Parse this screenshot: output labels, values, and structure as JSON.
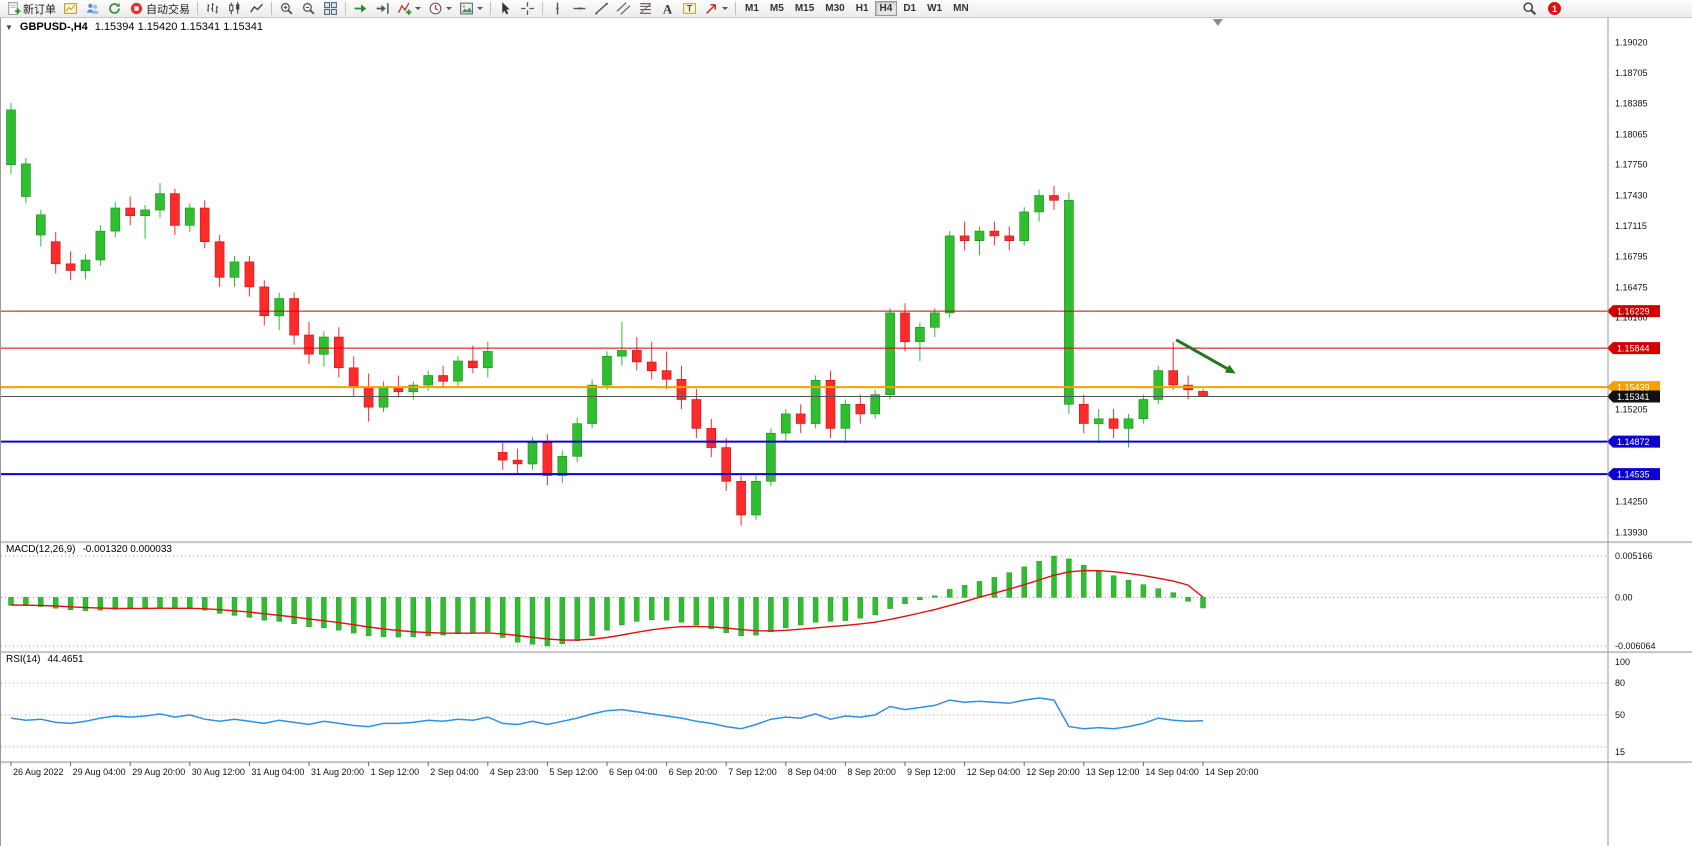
{
  "colors": {
    "candle_up": "#2fbe2f",
    "candle_down": "#ff2b2b",
    "candle_up_stroke": "#1d8c1d",
    "candle_down_stroke": "#c01414",
    "macd_histogram": "#2fbe2f",
    "macd_signal": "#e01010",
    "rsi_line": "#2f90df",
    "axis_text": "#111111",
    "grid_dotted": "#9a9a9a",
    "separator": "#9a9a9a",
    "arrow_annotation": "#1f7a1f",
    "notification_badge": "#e01010"
  },
  "toolbar": {
    "items": [
      {
        "name": "new-order-button",
        "icon": "doc-plus",
        "label": "新订单"
      },
      {
        "name": "new-chart-button",
        "icon": "chart-plus"
      },
      {
        "name": "profiles-button",
        "icon": "profiles"
      },
      {
        "name": "refresh-button",
        "icon": "refresh"
      },
      {
        "name": "auto-trading-button",
        "icon": "autotrade",
        "label": "自动交易"
      },
      {
        "sep": true
      },
      {
        "name": "bar-chart-button",
        "icon": "bars"
      },
      {
        "name": "candlestick-chart-button",
        "icon": "candles"
      },
      {
        "name": "line-chart-button",
        "icon": "linechart"
      },
      {
        "sep": true
      },
      {
        "name": "zoom-in-button",
        "icon": "zoom-in"
      },
      {
        "name": "zoom-out-button",
        "icon": "zoom-out"
      },
      {
        "name": "tile-windows-button",
        "icon": "tile"
      },
      {
        "sep": true
      },
      {
        "name": "auto-scroll-button",
        "icon": "autoscroll"
      },
      {
        "name": "chart-shift-button",
        "icon": "chartshift"
      },
      {
        "name": "indicators-button",
        "icon": "indicators",
        "caret": true
      },
      {
        "name": "periods-button",
        "icon": "clock",
        "caret": true
      },
      {
        "name": "templates-button",
        "icon": "template",
        "caret": true
      },
      {
        "sep": true
      },
      {
        "name": "cursor-button",
        "icon": "cursor"
      },
      {
        "name": "crosshair-button",
        "icon": "crosshair"
      },
      {
        "sep": true
      },
      {
        "name": "vertical-line-button",
        "icon": "vline"
      },
      {
        "name": "horizontal-line-button",
        "icon": "hline"
      },
      {
        "name": "trendline-button",
        "icon": "trendline"
      },
      {
        "name": "equidistant-channel-button",
        "icon": "channel"
      },
      {
        "name": "fibonacci-button",
        "icon": "fibo"
      },
      {
        "name": "text-button",
        "icon": "textA"
      },
      {
        "name": "text-label-button",
        "icon": "textT"
      },
      {
        "name": "arrows-button",
        "icon": "arrowmark",
        "caret": true
      },
      {
        "sep": true
      }
    ],
    "timeframes": [
      {
        "label": "M1"
      },
      {
        "label": "M5"
      },
      {
        "label": "M15"
      },
      {
        "label": "M30"
      },
      {
        "label": "H1"
      },
      {
        "label": "H4",
        "active": true
      },
      {
        "label": "D1"
      },
      {
        "label": "W1"
      },
      {
        "label": "MN"
      }
    ],
    "notification_count": "1"
  },
  "chart": {
    "symbol_title": "GBPUSD-,H4",
    "ohlc_readout": "1.15394 1.15420 1.15341 1.15341",
    "price_axis": [
      {
        "price": 1.1902,
        "label": "1.19020"
      },
      {
        "price": 1.18705,
        "label": "1.18705"
      },
      {
        "price": 1.18385,
        "label": "1.18385"
      },
      {
        "price": 1.18065,
        "label": "1.18065"
      },
      {
        "price": 1.1775,
        "label": "1.17750"
      },
      {
        "price": 1.1743,
        "label": "1.17430"
      },
      {
        "price": 1.17115,
        "label": "1.17115"
      },
      {
        "price": 1.16795,
        "label": "1.16795"
      },
      {
        "price": 1.16475,
        "label": "1.16475"
      },
      {
        "price": 1.1616,
        "label": "1.16160"
      },
      {
        "price": 1.15205,
        "label": "1.15205"
      },
      {
        "price": 1.1425,
        "label": "1.14250"
      },
      {
        "price": 1.1393,
        "label": "1.13930"
      }
    ],
    "hlines": [
      {
        "name": "resistance-line-upper",
        "price": 1.16229,
        "label": "1.16229",
        "color": "#d40000",
        "thickness": 1,
        "badge": "#d40000",
        "interactable": true
      },
      {
        "name": "resistance-line-lower",
        "price": 1.15844,
        "label": "1.15844",
        "color": "#d40000",
        "thickness": 1,
        "badge": "#d40000",
        "interactable": true
      },
      {
        "name": "pivot-line-orange",
        "price": 1.15439,
        "label": "1.15439",
        "color": "#f7a000",
        "thickness": 2,
        "badge": "#f7a000",
        "interactable": true
      },
      {
        "name": "bid-price-line",
        "price": 1.15341,
        "label": "1.15341",
        "color": "#555555",
        "thickness": 1,
        "badge": "#111111",
        "interactable": false
      },
      {
        "name": "support-line-upper",
        "price": 1.14872,
        "label": "1.14872",
        "color": "#0a00d0",
        "thickness": 2,
        "badge": "#0a00d0",
        "interactable": true
      },
      {
        "name": "support-line-lower",
        "price": 1.14535,
        "label": "1.14535",
        "color": "#0a00d0",
        "thickness": 2,
        "badge": "#0a00d0",
        "interactable": true
      }
    ],
    "shift_marker_bar": 81
  },
  "chart_data": {
    "type": "candlestick",
    "title": "GBPUSD- H4",
    "price_range": {
      "max": 1.1915,
      "min": 1.1385
    },
    "x_labels": [
      "26 Aug 2022",
      "29 Aug 04:00",
      "29 Aug 20:00",
      "30 Aug 12:00",
      "31 Aug 04:00",
      "31 Aug 20:00",
      "1 Sep 12:00",
      "2 Sep 04:00",
      "4 Sep 23:00",
      "5 Sep 12:00",
      "6 Sep 04:00",
      "6 Sep 20:00",
      "7 Sep 12:00",
      "8 Sep 04:00",
      "8 Sep 20:00",
      "9 Sep 12:00",
      "12 Sep 04:00",
      "12 Sep 20:00",
      "13 Sep 12:00",
      "14 Sep 04:00",
      "14 Sep 20:00"
    ],
    "bars_per_label": 4,
    "candles": [
      [
        1.1775,
        1.1839,
        1.1765,
        1.1832
      ],
      [
        1.1742,
        1.1782,
        1.1735,
        1.1776
      ],
      [
        1.1702,
        1.1728,
        1.169,
        1.1723
      ],
      [
        1.1695,
        1.1705,
        1.1662,
        1.1672
      ],
      [
        1.1672,
        1.1685,
        1.1655,
        1.1665
      ],
      [
        1.1665,
        1.1682,
        1.1656,
        1.1676
      ],
      [
        1.1676,
        1.1712,
        1.167,
        1.1706
      ],
      [
        1.1706,
        1.1736,
        1.17,
        1.173
      ],
      [
        1.173,
        1.1742,
        1.1712,
        1.1722
      ],
      [
        1.1722,
        1.1733,
        1.1698,
        1.1728
      ],
      [
        1.1728,
        1.1756,
        1.172,
        1.1745
      ],
      [
        1.1745,
        1.175,
        1.1702,
        1.1712
      ],
      [
        1.1712,
        1.1735,
        1.1705,
        1.173
      ],
      [
        1.173,
        1.1738,
        1.1688,
        1.1695
      ],
      [
        1.1695,
        1.1702,
        1.1648,
        1.1658
      ],
      [
        1.1658,
        1.168,
        1.1648,
        1.1674
      ],
      [
        1.1674,
        1.168,
        1.1638,
        1.1648
      ],
      [
        1.1648,
        1.1655,
        1.1608,
        1.1618
      ],
      [
        1.1618,
        1.1642,
        1.1603,
        1.1636
      ],
      [
        1.1636,
        1.1642,
        1.1588,
        1.1598
      ],
      [
        1.1598,
        1.1612,
        1.1568,
        1.1578
      ],
      [
        1.1578,
        1.1602,
        1.1565,
        1.1596
      ],
      [
        1.1596,
        1.1606,
        1.1554,
        1.1564
      ],
      [
        1.1564,
        1.1576,
        1.1534,
        1.1544
      ],
      [
        1.1544,
        1.1558,
        1.1508,
        1.1523
      ],
      [
        1.1523,
        1.155,
        1.1518,
        1.1544
      ],
      [
        1.1544,
        1.1556,
        1.1533,
        1.1539
      ],
      [
        1.1539,
        1.155,
        1.1531,
        1.1546
      ],
      [
        1.1546,
        1.1561,
        1.154,
        1.1556
      ],
      [
        1.1556,
        1.1566,
        1.1544,
        1.155
      ],
      [
        1.155,
        1.1576,
        1.1544,
        1.1571
      ],
      [
        1.1571,
        1.1587,
        1.1558,
        1.1564
      ],
      [
        1.1564,
        1.1591,
        1.1554,
        1.1581
      ],
      [
        1.1476,
        1.1486,
        1.1458,
        1.1468
      ],
      [
        1.1468,
        1.148,
        1.1454,
        1.1464
      ],
      [
        1.1464,
        1.1492,
        1.1458,
        1.1486
      ],
      [
        1.1486,
        1.1495,
        1.1442,
        1.1452
      ],
      [
        1.1452,
        1.1478,
        1.1444,
        1.1472
      ],
      [
        1.1472,
        1.1512,
        1.1466,
        1.1506
      ],
      [
        1.1506,
        1.1552,
        1.1501,
        1.1546
      ],
      [
        1.1546,
        1.1581,
        1.1541,
        1.1576
      ],
      [
        1.1576,
        1.1612,
        1.1566,
        1.1582
      ],
      [
        1.1582,
        1.1596,
        1.1561,
        1.157
      ],
      [
        1.157,
        1.1591,
        1.1552,
        1.1561
      ],
      [
        1.1561,
        1.1581,
        1.1542,
        1.1552
      ],
      [
        1.1552,
        1.1566,
        1.1521,
        1.1531
      ],
      [
        1.1531,
        1.1542,
        1.1491,
        1.1501
      ],
      [
        1.1501,
        1.1511,
        1.1471,
        1.1481
      ],
      [
        1.1481,
        1.1491,
        1.1436,
        1.1446
      ],
      [
        1.1446,
        1.1452,
        1.14,
        1.1411
      ],
      [
        1.1411,
        1.1452,
        1.1406,
        1.1446
      ],
      [
        1.1446,
        1.1501,
        1.1441,
        1.1496
      ],
      [
        1.1496,
        1.1521,
        1.1486,
        1.1516
      ],
      [
        1.1516,
        1.1526,
        1.1496,
        1.1506
      ],
      [
        1.1506,
        1.1556,
        1.1501,
        1.1551
      ],
      [
        1.1551,
        1.1561,
        1.1491,
        1.1501
      ],
      [
        1.1501,
        1.1531,
        1.1486,
        1.1526
      ],
      [
        1.1526,
        1.1536,
        1.1506,
        1.1516
      ],
      [
        1.1516,
        1.1541,
        1.1511,
        1.1536
      ],
      [
        1.1536,
        1.1626,
        1.1531,
        1.1621
      ],
      [
        1.1621,
        1.1631,
        1.1581,
        1.1591
      ],
      [
        1.1591,
        1.1611,
        1.1571,
        1.1606
      ],
      [
        1.1606,
        1.1626,
        1.1596,
        1.1621
      ],
      [
        1.1621,
        1.1706,
        1.1616,
        1.1701
      ],
      [
        1.1701,
        1.1716,
        1.1686,
        1.1696
      ],
      [
        1.1696,
        1.1711,
        1.1681,
        1.1706
      ],
      [
        1.1706,
        1.1716,
        1.1691,
        1.1701
      ],
      [
        1.1701,
        1.1711,
        1.1686,
        1.1696
      ],
      [
        1.1696,
        1.1731,
        1.1691,
        1.1726
      ],
      [
        1.1726,
        1.1749,
        1.1716,
        1.1743
      ],
      [
        1.1743,
        1.1753,
        1.1728,
        1.1738
      ],
      [
        1.1738,
        1.1746,
        1.1516,
        1.1526,
        "u"
      ],
      [
        1.1526,
        1.1536,
        1.1496,
        1.1506
      ],
      [
        1.1506,
        1.1521,
        1.1486,
        1.1511
      ],
      [
        1.1511,
        1.1521,
        1.1491,
        1.1501
      ],
      [
        1.1501,
        1.1516,
        1.1481,
        1.1511
      ],
      [
        1.1511,
        1.1536,
        1.1506,
        1.1531
      ],
      [
        1.1531,
        1.1566,
        1.1526,
        1.1561
      ],
      [
        1.1561,
        1.1591,
        1.1541,
        1.1546
      ],
      [
        1.1546,
        1.1556,
        1.1531,
        1.1541
      ],
      [
        1.15394,
        1.1542,
        1.15341,
        1.15341
      ]
    ],
    "macd": {
      "title": "MACD(12,26,9)",
      "readout": "-0.001320 0.000033",
      "max": 0.005166,
      "min": -0.006064,
      "axis": [
        {
          "value": 0.005166,
          "label": "0.005166"
        },
        {
          "value": 0,
          "label": "0.00"
        },
        {
          "value": -0.006064,
          "label": "-0.006064"
        }
      ],
      "histogram": [
        -0.001,
        -0.00105,
        -0.00115,
        -0.00135,
        -0.00155,
        -0.00165,
        -0.0016,
        -0.0015,
        -0.0014,
        -0.00135,
        -0.0013,
        -0.0014,
        -0.00135,
        -0.0016,
        -0.002,
        -0.00225,
        -0.0025,
        -0.00285,
        -0.003,
        -0.0033,
        -0.00365,
        -0.0038,
        -0.0041,
        -0.00445,
        -0.0048,
        -0.0049,
        -0.00495,
        -0.0049,
        -0.0048,
        -0.0047,
        -0.00455,
        -0.00445,
        -0.0043,
        -0.005,
        -0.0056,
        -0.00585,
        -0.00606,
        -0.0058,
        -0.0054,
        -0.0048,
        -0.0041,
        -0.00345,
        -0.003,
        -0.0028,
        -0.00285,
        -0.0031,
        -0.00345,
        -0.0039,
        -0.0044,
        -0.0048,
        -0.0047,
        -0.0043,
        -0.0038,
        -0.00345,
        -0.0031,
        -0.003,
        -0.0029,
        -0.0026,
        -0.0022,
        -0.0014,
        -0.0008,
        -0.0003,
        0.0002,
        0.001,
        0.0015,
        0.002,
        0.0025,
        0.0031,
        0.0038,
        0.0045,
        0.00517,
        0.0048,
        0.004,
        0.0033,
        0.0027,
        0.00215,
        0.0016,
        0.0011,
        0.0006,
        -0.0005,
        -0.00132
      ],
      "signal": [
        -0.00095,
        -0.00097,
        -0.001,
        -0.00107,
        -0.00117,
        -0.00127,
        -0.00133,
        -0.00137,
        -0.00137,
        -0.00137,
        -0.00135,
        -0.00136,
        -0.00136,
        -0.00141,
        -0.00153,
        -0.00167,
        -0.00184,
        -0.00204,
        -0.00223,
        -0.00245,
        -0.00269,
        -0.00291,
        -0.00315,
        -0.00341,
        -0.00369,
        -0.00393,
        -0.00413,
        -0.00429,
        -0.00439,
        -0.00445,
        -0.00447,
        -0.00447,
        -0.00443,
        -0.00455,
        -0.00476,
        -0.00498,
        -0.00519,
        -0.00531,
        -0.00533,
        -0.00522,
        -0.005,
        -0.00469,
        -0.00435,
        -0.00404,
        -0.0038,
        -0.00366,
        -0.00362,
        -0.00368,
        -0.00382,
        -0.00402,
        -0.00415,
        -0.00418,
        -0.0041,
        -0.00397,
        -0.0038,
        -0.00364,
        -0.00349,
        -0.00331,
        -0.00309,
        -0.00275,
        -0.00236,
        -0.00195,
        -0.00152,
        -0.00102,
        -0.00052,
        3e-05,
        0.00052,
        0.00104,
        0.00159,
        0.00217,
        0.00277,
        0.00318,
        0.00334,
        0.00333,
        0.00321,
        0.003,
        0.00272,
        0.0024,
        0.00204,
        0.00153,
        3e-05
      ]
    },
    "rsi": {
      "title": "RSI(14)",
      "readout": "44.4651",
      "max": 100,
      "min": 15,
      "levels": [
        80,
        50,
        20
      ],
      "axis": [
        {
          "value": 100,
          "label": "100"
        },
        {
          "value": 80,
          "label": "80"
        },
        {
          "value": 50,
          "label": "50"
        },
        {
          "value": 15,
          "label": "15"
        }
      ],
      "values": [
        47,
        45,
        46,
        43,
        42,
        44,
        47,
        49,
        48,
        49,
        51,
        48,
        50,
        46,
        44,
        46,
        44,
        42,
        45,
        43,
        41,
        44,
        42,
        40,
        39,
        42,
        42,
        43,
        45,
        44,
        46,
        45,
        48,
        42,
        41,
        44,
        41,
        44,
        47,
        51,
        54,
        55,
        53,
        51,
        49,
        47,
        44,
        42,
        39,
        37,
        41,
        46,
        48,
        47,
        51,
        46,
        49,
        48,
        50,
        58,
        55,
        57,
        59,
        64,
        62,
        63,
        62,
        61,
        64,
        66,
        64,
        39,
        37,
        38,
        37,
        39,
        42,
        47,
        45,
        44,
        44.4651
      ]
    },
    "annotation_arrow": {
      "from_bar": 78.2,
      "from_price": 1.1593,
      "to_bar": 82.2,
      "to_price": 1.1558,
      "color": "#1f7a1f"
    }
  }
}
